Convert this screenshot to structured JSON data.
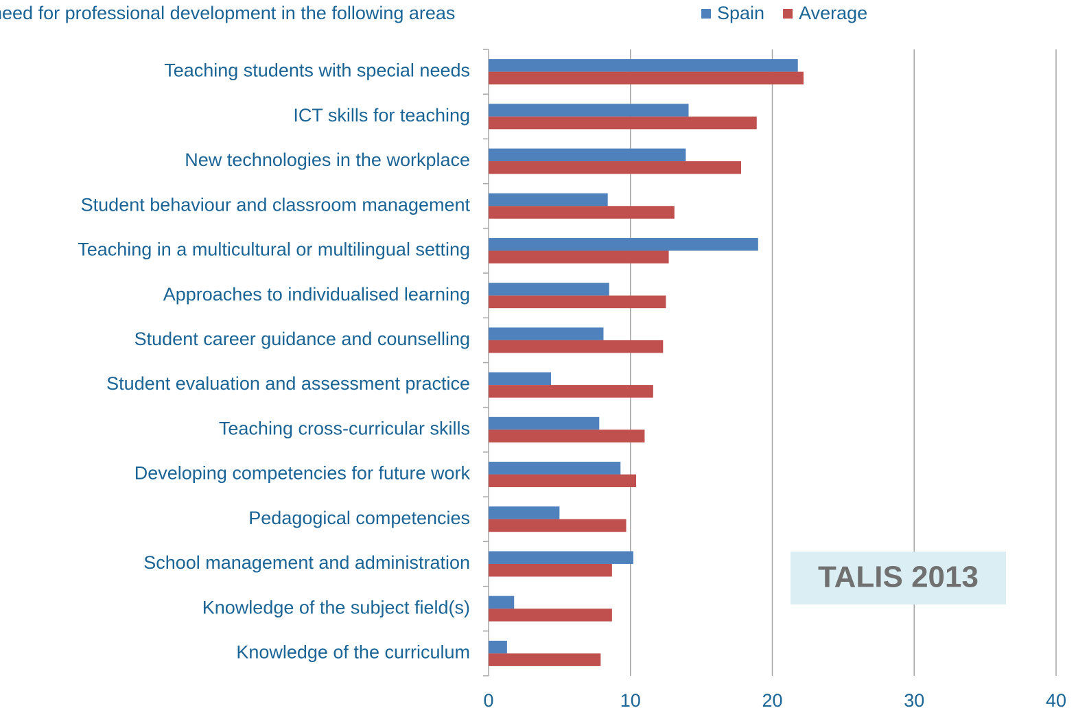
{
  "chart_data": {
    "type": "barh",
    "title": "need for professional development in the following areas",
    "annotation": "TALIS 2013",
    "categories": [
      "Teaching students with special needs",
      "ICT skills for teaching",
      "New technologies in the workplace",
      "Student behaviour and classroom management",
      "Teaching in a multicultural or multilingual setting",
      "Approaches to individualised learning",
      "Student career guidance and counselling",
      "Student evaluation and assessment practice",
      "Teaching cross-curricular skills",
      "Developing competencies for future work",
      "Pedagogical competencies",
      "School management and administration",
      "Knowledge of the subject field(s)",
      "Knowledge of the curriculum"
    ],
    "series": [
      {
        "name": "Spain",
        "color": "#4f81bd",
        "values": [
          21.8,
          14.1,
          13.9,
          8.4,
          19.0,
          8.5,
          8.1,
          4.4,
          7.8,
          9.3,
          5.0,
          10.2,
          1.8,
          1.3
        ]
      },
      {
        "name": "Average",
        "color": "#c0504d",
        "values": [
          22.2,
          18.9,
          17.8,
          13.1,
          12.7,
          12.5,
          12.3,
          11.6,
          11.0,
          10.4,
          9.7,
          8.7,
          8.7,
          7.9
        ]
      }
    ],
    "xlim": [
      0,
      40
    ],
    "xticks": [
      0,
      10,
      20,
      30,
      40
    ],
    "grid": true,
    "legend": "top"
  }
}
